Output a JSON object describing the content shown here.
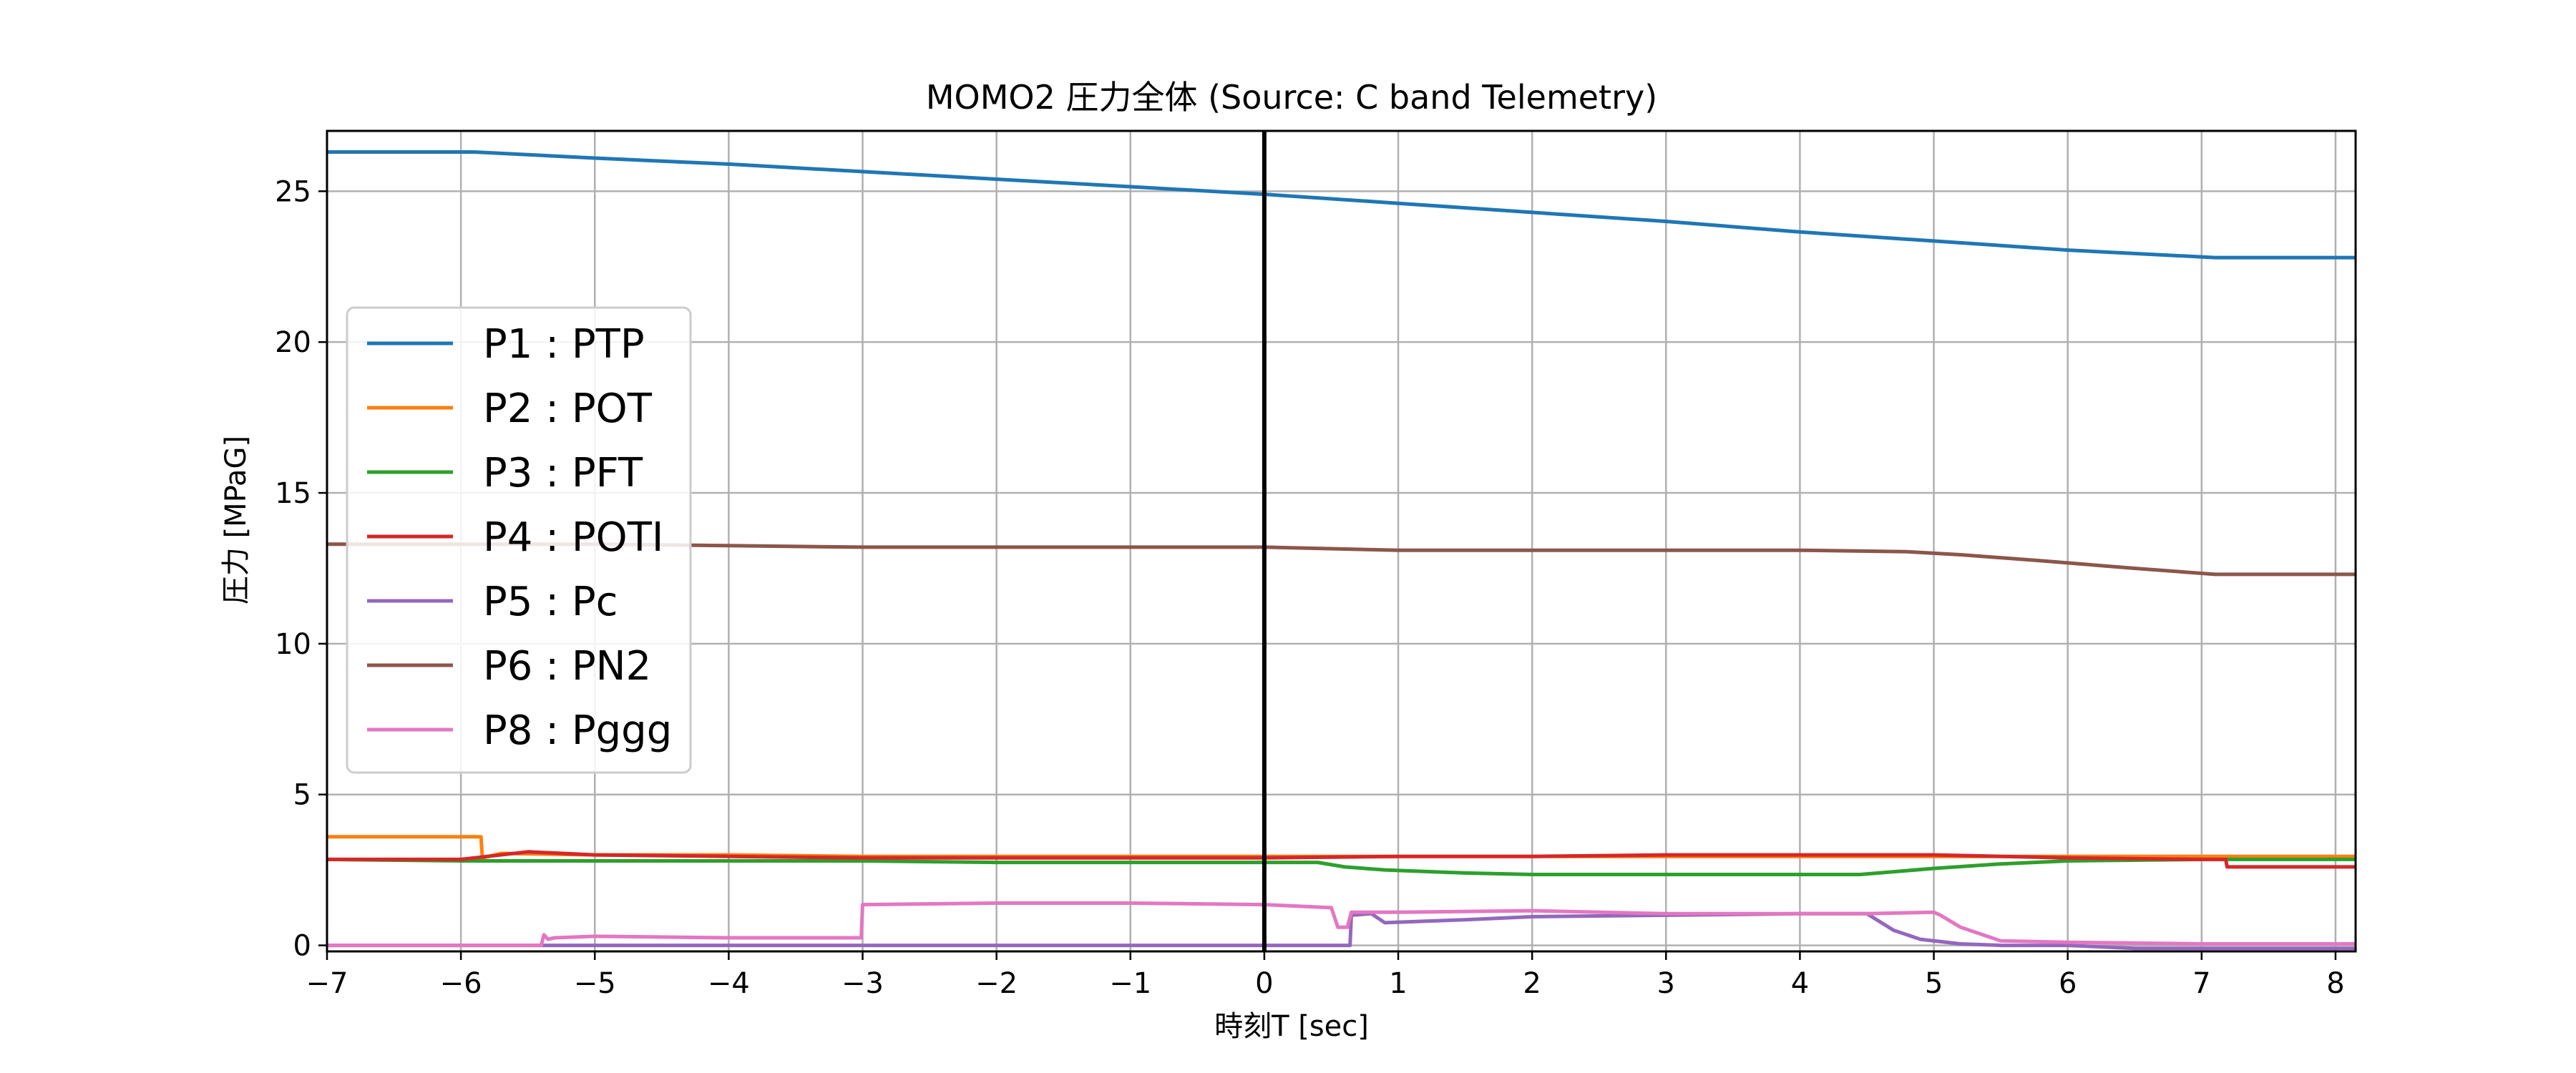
{
  "chart_data": {
    "type": "line",
    "title": "MOMO2 圧力全体 (Source: C band Telemetry)",
    "xlabel": "時刻T [sec]",
    "ylabel": "圧力 [MPaG]",
    "xlim": [
      -7,
      8.15
    ],
    "ylim": [
      -0.2,
      27
    ],
    "xticks": [
      -7,
      -6,
      -5,
      -4,
      -3,
      -2,
      -1,
      0,
      1,
      2,
      3,
      4,
      5,
      6,
      7,
      8
    ],
    "xtick_labels": [
      "−7",
      "−6",
      "−5",
      "−4",
      "−3",
      "−2",
      "−1",
      "0",
      "1",
      "2",
      "3",
      "4",
      "5",
      "6",
      "7",
      "8"
    ],
    "yticks": [
      0,
      5,
      10,
      15,
      20,
      25
    ],
    "ytick_labels": [
      "0",
      "5",
      "10",
      "15",
      "20",
      "25"
    ],
    "grid": true,
    "legend_position": "center-left",
    "vline_x": 0,
    "series": [
      {
        "name": "P1 : PTP",
        "color": "#1f77b4",
        "x": [
          -7,
          -5.9,
          -5,
          -4,
          -3,
          -2,
          -1,
          0,
          1,
          2,
          3,
          4,
          5,
          6,
          7.1,
          8.15
        ],
        "y": [
          26.3,
          26.3,
          26.1,
          25.9,
          25.65,
          25.4,
          25.15,
          24.9,
          24.6,
          24.3,
          24.0,
          23.65,
          23.35,
          23.05,
          22.8,
          22.8
        ]
      },
      {
        "name": "P2 : POT",
        "color": "#ff7f0e",
        "x": [
          -7,
          -5.85,
          -5.84,
          -5.7,
          -5,
          -4,
          -3,
          -2,
          -1,
          0,
          1,
          2,
          3,
          4,
          5,
          6,
          7,
          8.15
        ],
        "y": [
          3.6,
          3.6,
          2.9,
          3.05,
          3.0,
          3.0,
          2.95,
          2.95,
          2.95,
          2.95,
          2.95,
          2.95,
          2.95,
          2.95,
          2.95,
          2.95,
          2.95,
          2.95
        ]
      },
      {
        "name": "P3 : PFT",
        "color": "#2ca02c",
        "x": [
          -7,
          -6,
          -5,
          -4,
          -3,
          -2,
          -1,
          0,
          0.4,
          0.6,
          0.9,
          1.5,
          2,
          3,
          4,
          4.45,
          5,
          5.5,
          6,
          7,
          8.15
        ],
        "y": [
          2.85,
          2.8,
          2.8,
          2.8,
          2.8,
          2.75,
          2.75,
          2.75,
          2.75,
          2.6,
          2.5,
          2.4,
          2.35,
          2.35,
          2.35,
          2.35,
          2.55,
          2.7,
          2.8,
          2.85,
          2.85
        ]
      },
      {
        "name": "P4 : POTI",
        "color": "#d62728",
        "x": [
          -7,
          -6,
          -5.8,
          -5.5,
          -5,
          -4,
          -3,
          -2,
          -1,
          0,
          1,
          2,
          3,
          4,
          5,
          6,
          7,
          7.18,
          7.19,
          8.15
        ],
        "y": [
          2.85,
          2.85,
          2.95,
          3.1,
          3.0,
          2.95,
          2.9,
          2.9,
          2.9,
          2.9,
          2.95,
          2.95,
          3.0,
          3.0,
          3.0,
          2.9,
          2.85,
          2.85,
          2.6,
          2.6
        ]
      },
      {
        "name": "P5 : Pc",
        "color": "#9467bd",
        "x": [
          -7,
          -3,
          0,
          0.64,
          0.65,
          0.8,
          0.9,
          1.5,
          2,
          3,
          4,
          4.5,
          4.7,
          4.9,
          5.2,
          5.5,
          6,
          6.5,
          7,
          8.15
        ],
        "y": [
          0.0,
          0.0,
          0.0,
          0.0,
          1.0,
          1.05,
          0.75,
          0.85,
          0.95,
          1.0,
          1.05,
          1.05,
          0.5,
          0.2,
          0.05,
          0.0,
          0.0,
          -0.1,
          -0.1,
          -0.1
        ]
      },
      {
        "name": "P6 : PN2",
        "color": "#8c564b",
        "x": [
          -7,
          -6,
          -5,
          -4,
          -3,
          -2,
          -1,
          0,
          1,
          2,
          3,
          4,
          4.8,
          5.2,
          5.8,
          6.5,
          7.1,
          8.15
        ],
        "y": [
          13.3,
          13.3,
          13.3,
          13.25,
          13.2,
          13.2,
          13.2,
          13.2,
          13.1,
          13.1,
          13.1,
          13.1,
          13.05,
          12.95,
          12.75,
          12.5,
          12.3,
          12.3
        ]
      },
      {
        "name": "P8 : Pggg",
        "color": "#e377c2",
        "x": [
          -7,
          -5.4,
          -5.38,
          -5.35,
          -5.3,
          -5,
          -4,
          -3.01,
          -3.0,
          -2,
          -1,
          0,
          0.5,
          0.55,
          0.62,
          0.65,
          1,
          2,
          3,
          4,
          4.5,
          5.0,
          5.05,
          5.2,
          5.5,
          6,
          7,
          8.15
        ],
        "y": [
          0.0,
          0.0,
          0.35,
          0.2,
          0.25,
          0.3,
          0.25,
          0.25,
          1.35,
          1.4,
          1.4,
          1.35,
          1.25,
          0.6,
          0.6,
          1.1,
          1.1,
          1.15,
          1.05,
          1.05,
          1.05,
          1.1,
          1.0,
          0.6,
          0.15,
          0.1,
          0.05,
          0.05
        ]
      }
    ]
  }
}
